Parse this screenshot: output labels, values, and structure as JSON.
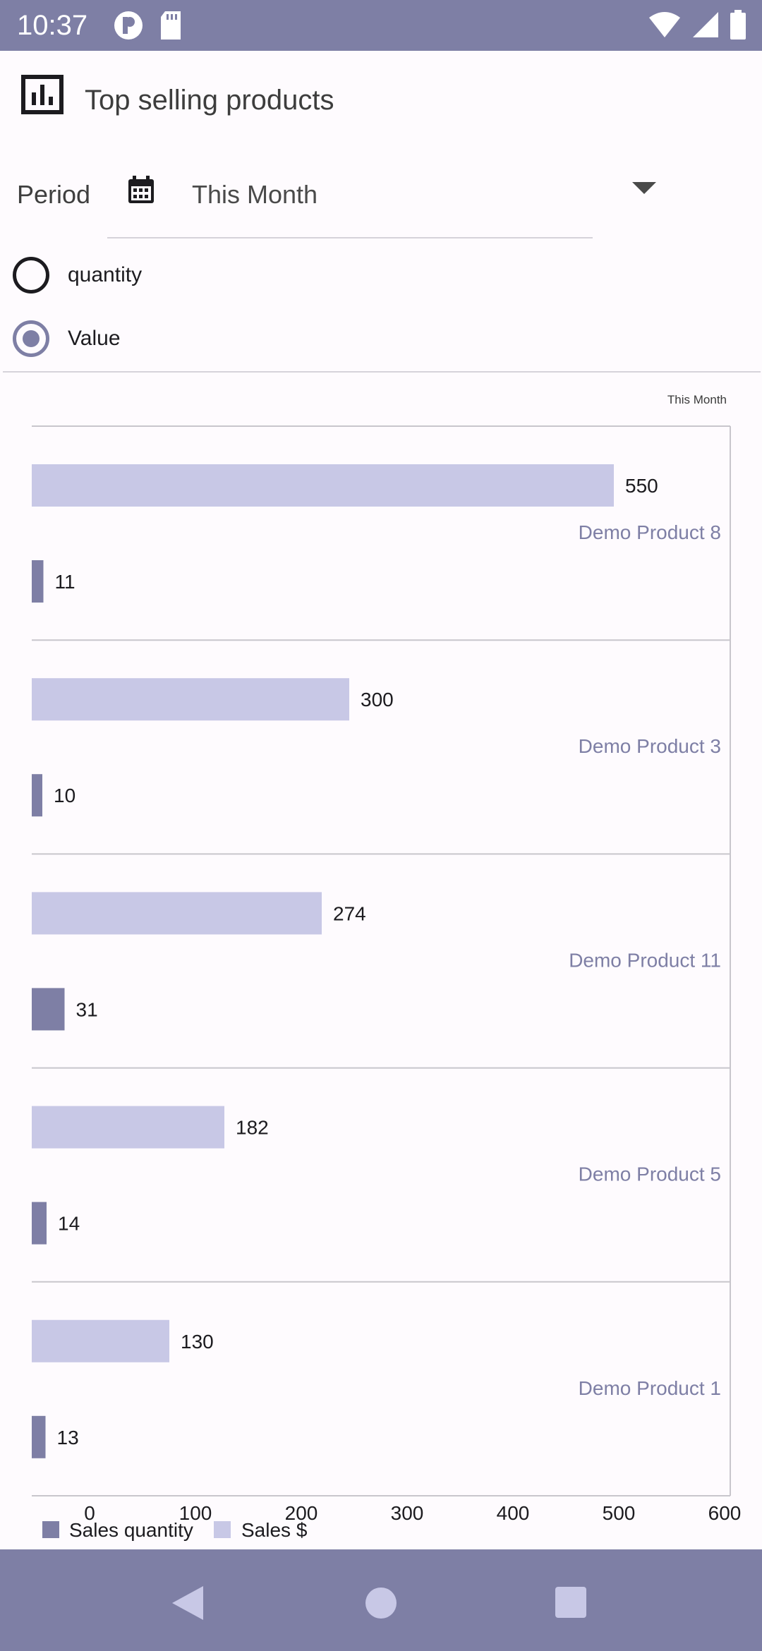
{
  "status_bar": {
    "time": "10:37",
    "icons": [
      "app-notification-icon",
      "sd-card-icon",
      "wifi-icon",
      "signal-icon",
      "battery-icon"
    ],
    "background": "#7e7fa5"
  },
  "header": {
    "icon": "bar-chart-icon",
    "title": "Top selling products"
  },
  "filters": {
    "period_label": "Period",
    "period_icon": "calendar-icon",
    "period_value": "This Month",
    "radio_options": [
      {
        "label": "quantity",
        "selected": false
      },
      {
        "label": "Value",
        "selected": true
      }
    ]
  },
  "chart_data": {
    "type": "bar",
    "orientation": "horizontal",
    "title": "This Month",
    "categories": [
      "Demo Product 8",
      "Demo Product 3",
      "Demo Product 11",
      "Demo Product 5",
      "Demo Product 1"
    ],
    "series": [
      {
        "name": "Sales $",
        "values": [
          550,
          300,
          274,
          182,
          130
        ],
        "color": "#c8c8e6"
      },
      {
        "name": "Sales quantity",
        "values": [
          11,
          10,
          31,
          14,
          13
        ],
        "color": "#7e7fa5"
      }
    ],
    "xlim": [
      0,
      600
    ],
    "x_ticks": [
      "0",
      "100",
      "200",
      "300",
      "400",
      "500",
      "600"
    ],
    "legend": "bottom-left",
    "grid": true
  },
  "nav_bar": {
    "buttons": [
      "back-icon",
      "home-icon",
      "recents-icon"
    ],
    "background": "#7e7fa5"
  }
}
